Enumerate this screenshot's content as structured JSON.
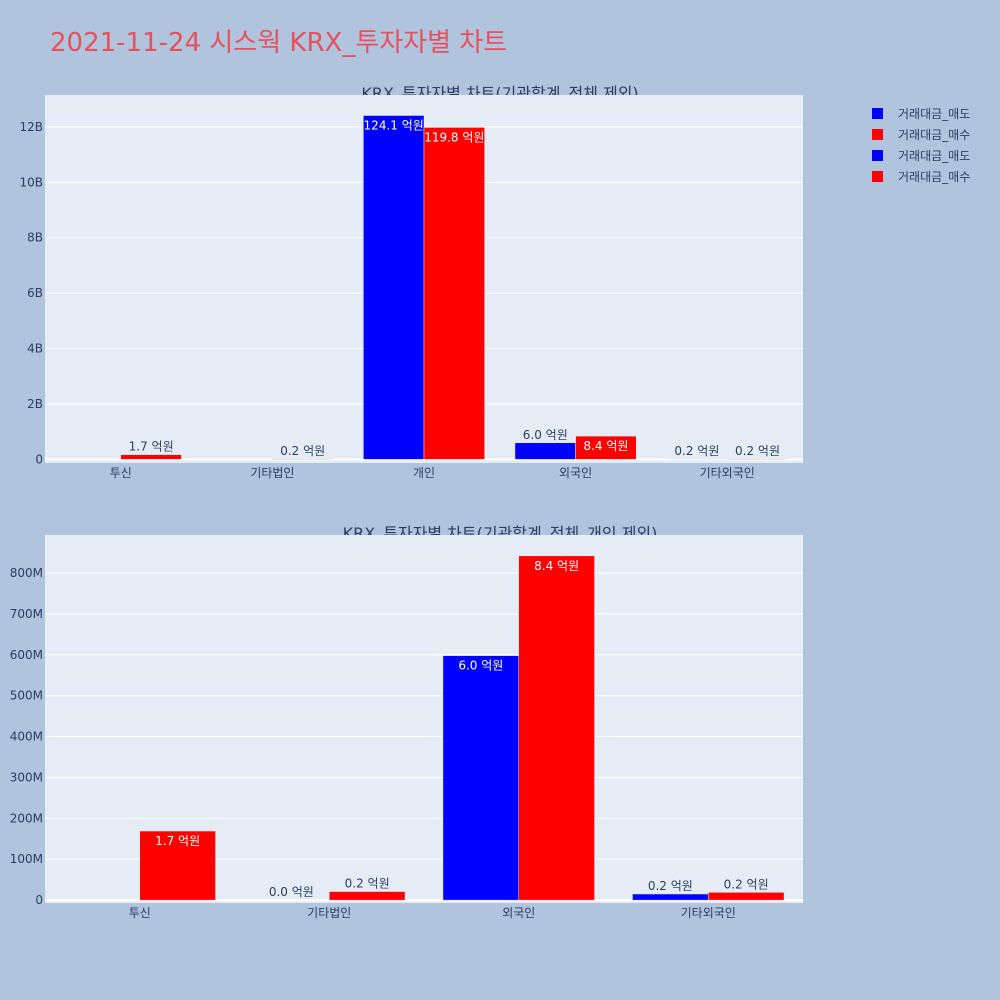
{
  "title": "2021-11-24 시스웍 KRX_투자자별 차트",
  "colors": {
    "sell": "#0000ff",
    "buy": "#ff0000",
    "plot_bg": "#e5ecf6",
    "page_bg": "#b0c4de"
  },
  "legend": [
    {
      "label": "거래대금_매도",
      "color": "#0000ff"
    },
    {
      "label": "거래대금_매수",
      "color": "#ff0000"
    },
    {
      "label": "거래대금_매도",
      "color": "#0000ff"
    },
    {
      "label": "거래대금_매수",
      "color": "#ff0000"
    }
  ],
  "chart_data": [
    {
      "type": "bar",
      "title": "KRX_투자자별 차트(기관합계_전체 제외)",
      "categories": [
        "투신",
        "기타법인",
        "개인",
        "외국인",
        "기타외국인"
      ],
      "series": [
        {
          "name": "거래대금_매도",
          "values": [
            0,
            0,
            12410000000,
            600000000,
            17000000
          ],
          "labels": [
            "",
            "",
            "124.1 억원",
            "6.0 억원",
            "0.2 억원"
          ]
        },
        {
          "name": "거래대금_매수",
          "values": [
            170000000,
            20000000,
            11980000000,
            840000000,
            20000000
          ],
          "labels": [
            "1.7 억원",
            "0.2 억원",
            "119.8 억원",
            "8.4 억원",
            "0.2 억원"
          ]
        }
      ],
      "ylim": [
        -130000000,
        13150000000
      ],
      "yticks": [
        0,
        2000000000,
        4000000000,
        6000000000,
        8000000000,
        10000000000,
        12000000000
      ],
      "yticklabels": [
        "0",
        "2B",
        "4B",
        "6B",
        "8B",
        "10B",
        "12B"
      ]
    },
    {
      "type": "bar",
      "title": "KRX_투자자별 차트(기관합계_전체_개인 제외)",
      "categories": [
        "투신",
        "기타법인",
        "외국인",
        "기타외국인"
      ],
      "series": [
        {
          "name": "거래대금_매도",
          "values": [
            0,
            0,
            598000000,
            15000000
          ],
          "labels": [
            "",
            "0.0 억원",
            "6.0 억원",
            "0.2 억원"
          ]
        },
        {
          "name": "거래대금_매수",
          "values": [
            169000000,
            21000000,
            842000000,
            19000000
          ],
          "labels": [
            "1.7 억원",
            "0.2 억원",
            "8.4 억원",
            "0.2 억원"
          ]
        }
      ],
      "ylim": [
        -7000000,
        893000000
      ],
      "yticks": [
        0,
        100000000,
        200000000,
        300000000,
        400000000,
        500000000,
        600000000,
        700000000,
        800000000
      ],
      "yticklabels": [
        "0",
        "100M",
        "200M",
        "300M",
        "400M",
        "500M",
        "600M",
        "700M",
        "800M"
      ]
    }
  ]
}
